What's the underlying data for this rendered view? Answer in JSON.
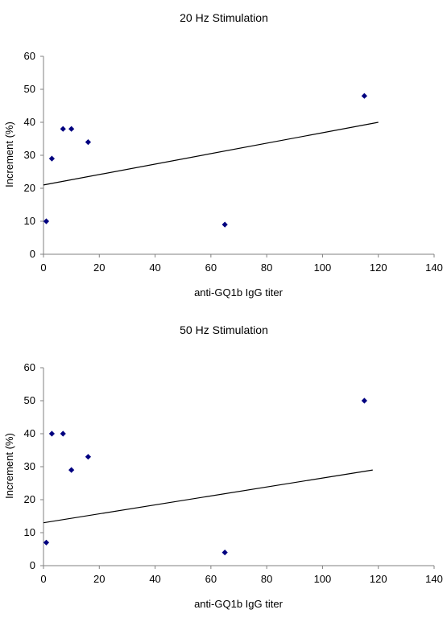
{
  "chart_data": [
    {
      "type": "scatter",
      "title": "20 Hz Stimulation",
      "xlabel": "anti-GQ1b IgG titer",
      "ylabel": "Increment (%)",
      "xlim": [
        0,
        140
      ],
      "ylim": [
        0,
        60
      ],
      "xticks": [
        "0",
        "20",
        "40",
        "60",
        "80",
        "100",
        "120",
        "140"
      ],
      "yticks": [
        "0",
        "10",
        "20",
        "30",
        "40",
        "50",
        "60"
      ],
      "grid": false,
      "legend": "none",
      "marker_color": "#000080",
      "points": [
        {
          "x": 1,
          "y": 10
        },
        {
          "x": 3,
          "y": 29
        },
        {
          "x": 7,
          "y": 38
        },
        {
          "x": 10,
          "y": 38
        },
        {
          "x": 16,
          "y": 34
        },
        {
          "x": 65,
          "y": 9
        },
        {
          "x": 115,
          "y": 48
        }
      ],
      "trendline": {
        "x": [
          0,
          120
        ],
        "y": [
          21,
          40
        ]
      }
    },
    {
      "type": "scatter",
      "title": "50 Hz Stimulation",
      "xlabel": "anti-GQ1b IgG titer",
      "ylabel": "Increment (%)",
      "xlim": [
        0,
        140
      ],
      "ylim": [
        0,
        60
      ],
      "xticks": [
        "0",
        "20",
        "40",
        "60",
        "80",
        "100",
        "120",
        "140"
      ],
      "yticks": [
        "0",
        "10",
        "20",
        "30",
        "40",
        "50",
        "60"
      ],
      "grid": false,
      "legend": "none",
      "marker_color": "#000080",
      "points": [
        {
          "x": 1,
          "y": 7
        },
        {
          "x": 3,
          "y": 40
        },
        {
          "x": 7,
          "y": 40
        },
        {
          "x": 10,
          "y": 29
        },
        {
          "x": 16,
          "y": 33
        },
        {
          "x": 65,
          "y": 4
        },
        {
          "x": 115,
          "y": 50
        }
      ],
      "trendline": {
        "x": [
          0,
          118
        ],
        "y": [
          13,
          29
        ]
      }
    }
  ]
}
